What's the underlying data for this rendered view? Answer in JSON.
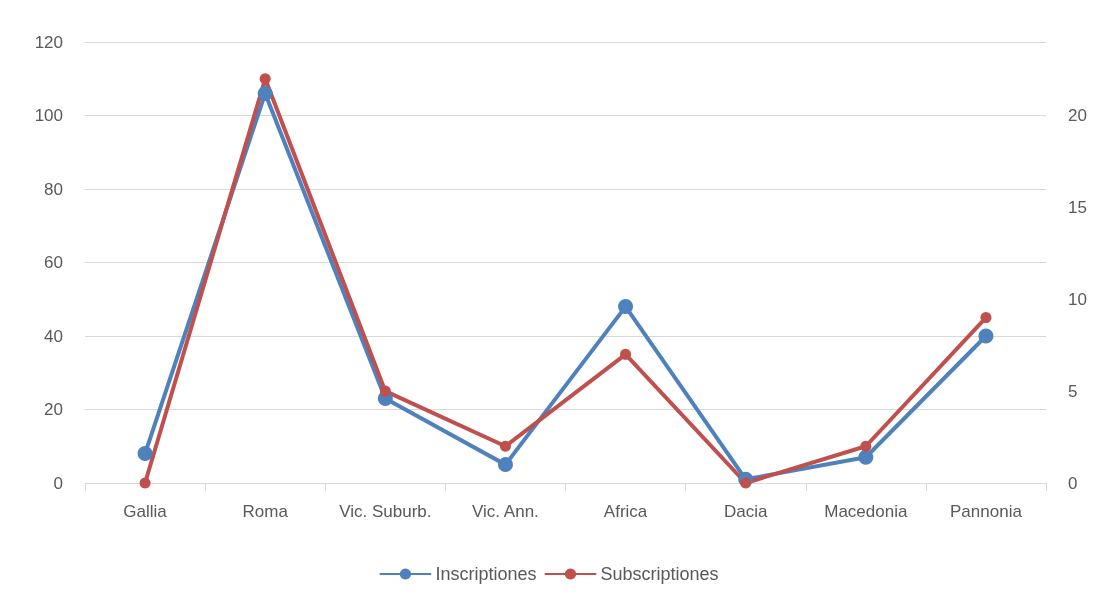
{
  "chart_data": {
    "type": "line",
    "categories": [
      "Gallia",
      "Roma",
      "Vic. Suburb.",
      "Vic. Ann.",
      "Africa",
      "Dacia",
      "Macedonia",
      "Pannonia"
    ],
    "series": [
      {
        "name": "Inscriptiones",
        "color": "#4f81bd",
        "values": [
          8,
          106,
          23,
          5,
          48,
          1,
          7,
          40
        ]
      },
      {
        "name": "Subscriptiones",
        "color": "#c0504d",
        "axis": "y2",
        "values": [
          0,
          22,
          5,
          2,
          7,
          0,
          2,
          9
        ]
      }
    ],
    "ylim": [
      0,
      120
    ],
    "yticks": [
      0,
      20,
      40,
      60,
      80,
      100,
      120
    ],
    "y2lim": [
      0,
      24
    ],
    "y2ticks": [
      0,
      5,
      10,
      15,
      20
    ],
    "grid": "y",
    "legend": "bottom",
    "marker": "circle",
    "line_style": "solid"
  }
}
